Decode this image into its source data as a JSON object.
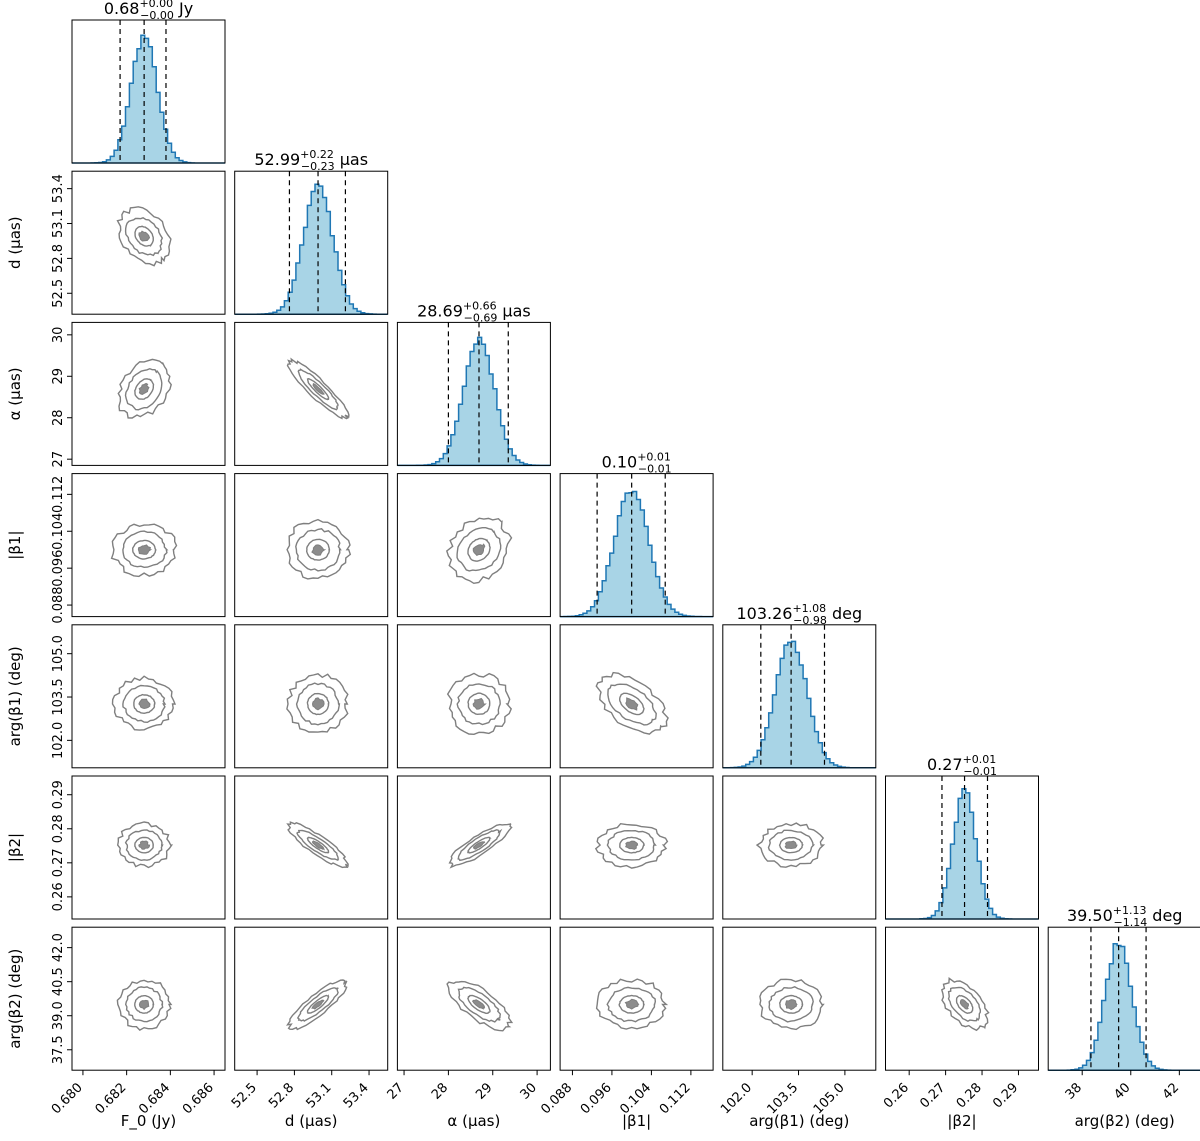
{
  "chart_data": {
    "type": "corner",
    "parameters": [
      {
        "key": "F0",
        "axis_label": "F_0 (Jy)",
        "median": 0.68,
        "plus": 0.0,
        "minus": 0.0,
        "title_text": "0.68",
        "title_sup": "+0.00",
        "title_sub": "−0.00",
        "title_unit": "Jy",
        "center": 0.6828,
        "sigma": 0.0006,
        "range": [
          0.6795,
          0.6865
        ],
        "ticks": [
          0.68,
          0.682,
          0.684,
          0.686
        ],
        "tick_labels": [
          "0.680",
          "0.682",
          "0.684",
          "0.686"
        ],
        "q_lo": 0.6817,
        "q_hi": 0.6838
      },
      {
        "key": "d",
        "axis_label": "d (μas)",
        "median": 52.99,
        "plus": 0.22,
        "minus": 0.23,
        "title_text": "52.99",
        "title_sup": "+0.22",
        "title_sub": "−0.23",
        "title_unit": "μas",
        "center": 52.99,
        "sigma": 0.12,
        "range": [
          52.32,
          53.55
        ],
        "ticks": [
          52.5,
          52.8,
          53.1,
          53.4
        ],
        "tick_labels": [
          "52.5",
          "52.8",
          "53.1",
          "53.4"
        ],
        "q_lo": 52.76,
        "q_hi": 53.21
      },
      {
        "key": "alpha",
        "axis_label": "α (μas)",
        "median": 28.69,
        "plus": 0.66,
        "minus": 0.69,
        "title_text": "28.69",
        "title_sup": "+0.66",
        "title_sub": "−0.69",
        "title_unit": "μas",
        "center": 28.69,
        "sigma": 0.35,
        "range": [
          26.85,
          30.3
        ],
        "ticks": [
          27,
          28,
          29,
          30
        ],
        "tick_labels": [
          "27",
          "28",
          "29",
          "30"
        ],
        "q_lo": 28.0,
        "q_hi": 29.35
      },
      {
        "key": "beta1",
        "axis_label": "|β1|",
        "median": 0.1,
        "plus": 0.01,
        "minus": 0.01,
        "title_text": "0.10",
        "title_sup": "+0.01",
        "title_sub": "−0.01",
        "title_unit": "",
        "center": 0.1,
        "sigma": 0.0035,
        "range": [
          0.0855,
          0.1165
        ],
        "ticks": [
          0.088,
          0.096,
          0.104,
          0.112
        ],
        "tick_labels": [
          "0.088",
          "0.096",
          "0.104",
          "0.112"
        ],
        "q_lo": 0.093,
        "q_hi": 0.1068
      },
      {
        "key": "argbeta1",
        "axis_label": "arg(β1) (deg)",
        "median": 103.26,
        "plus": 1.08,
        "minus": 0.98,
        "title_text": "103.26",
        "title_sup": "+1.08",
        "title_sub": "−0.98",
        "title_unit": "deg",
        "center": 103.26,
        "sigma": 0.52,
        "range": [
          101.05,
          106.0
        ],
        "ticks": [
          102.0,
          103.5,
          105.0
        ],
        "tick_labels": [
          "102.0",
          "103.5",
          "105.0"
        ],
        "q_lo": 102.28,
        "q_hi": 104.34
      },
      {
        "key": "beta2",
        "axis_label": "|β2|",
        "median": 0.27,
        "plus": 0.01,
        "minus": 0.01,
        "title_text": "0.27",
        "title_sup": "+0.01",
        "title_sub": "−0.01",
        "title_unit": "",
        "center": 0.2752,
        "sigma": 0.0032,
        "range": [
          0.2535,
          0.2955
        ],
        "ticks": [
          0.26,
          0.27,
          0.28,
          0.29
        ],
        "tick_labels": [
          "0.26",
          "0.27",
          "0.28",
          "0.29"
        ],
        "q_lo": 0.269,
        "q_hi": 0.2815
      },
      {
        "key": "argbeta2",
        "axis_label": "arg(β2) (deg)",
        "median": 39.5,
        "plus": 1.13,
        "minus": 1.14,
        "title_text": "39.50",
        "title_sup": "+1.13",
        "title_sub": "−1.14",
        "title_unit": "deg",
        "center": 39.5,
        "sigma": 0.55,
        "range": [
          36.6,
          42.9
        ],
        "ticks": [
          37.5,
          39.0,
          40.5,
          42.0
        ],
        "tick_labels": [
          "37.5",
          "39.0",
          "40.5",
          "42.0"
        ],
        "bottom_ticks": [
          38,
          40,
          42
        ],
        "bottom_tick_labels": [
          "38",
          "40",
          "42"
        ],
        "q_lo": 38.36,
        "q_hi": 40.63
      }
    ],
    "correlations": [
      [
        1,
        0,
        0,
        0,
        0,
        0,
        0
      ],
      [
        -0.3,
        1,
        0,
        0,
        0,
        0,
        0
      ],
      [
        0.3,
        -0.9,
        1,
        0,
        0,
        0,
        0
      ],
      [
        0.0,
        0.0,
        0.2,
        1,
        0,
        0,
        0
      ],
      [
        0.0,
        0.0,
        0.0,
        -0.5,
        1,
        0,
        0
      ],
      [
        0.0,
        -0.85,
        0.85,
        0.0,
        0.0,
        1,
        0
      ],
      [
        0.0,
        0.85,
        -0.7,
        0.0,
        0.0,
        -0.5,
        1
      ]
    ],
    "contour_levels": [
      0.39,
      0.86,
      0.99
    ],
    "colors": {
      "hist_fill": "#a8d4e6",
      "hist_line": "#1f77b4",
      "contour": "#7f7f7f",
      "quantile_line": "#000000"
    }
  }
}
